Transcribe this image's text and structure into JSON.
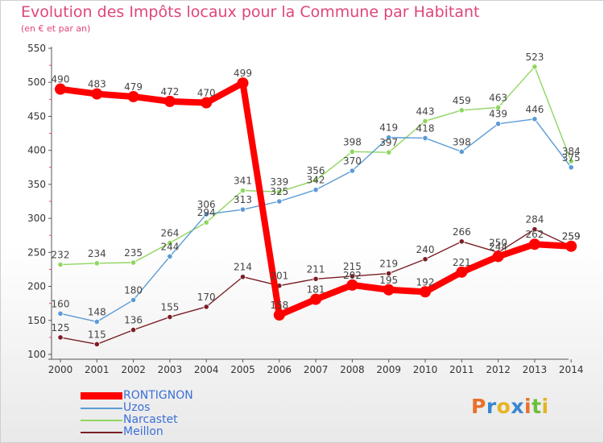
{
  "title": "Evolution des Impôts locaux pour la Commune par Habitant",
  "subtitle": "(en € et par an)",
  "logo": {
    "letters": [
      "P",
      "r",
      "o",
      "x",
      "i",
      "t",
      "i"
    ],
    "colors": [
      "#e8712d",
      "#3a86cf",
      "#e6b422",
      "#3a86cf",
      "#e8712d",
      "#6cbf3a",
      "#e6b422"
    ]
  },
  "chart_data": {
    "type": "line",
    "x": [
      "2000",
      "2001",
      "2002",
      "2003",
      "2004",
      "2005",
      "2006",
      "2007",
      "2008",
      "2009",
      "2010",
      "2011",
      "2012",
      "2013",
      "2014"
    ],
    "yticks": [
      "100",
      "150",
      "200",
      "250",
      "300",
      "350",
      "400",
      "450",
      "500",
      "550"
    ],
    "ylim": [
      100,
      550
    ],
    "grid": false,
    "legend": "bottom-left",
    "series": [
      {
        "name": "RONTIGNON",
        "color": "#ff0000",
        "values": [
          490,
          483,
          479,
          472,
          470,
          499,
          158,
          181,
          202,
          195,
          192,
          221,
          244,
          262,
          259
        ],
        "labels": [
          "490",
          "483",
          "479",
          "472",
          "470",
          "499",
          "158",
          "181",
          "202",
          "195",
          "192",
          "221",
          "244",
          "262",
          "259"
        ]
      },
      {
        "name": "Uzos",
        "color": "#5b9bd5",
        "values": [
          160,
          148,
          180,
          244,
          306,
          313,
          325,
          342,
          370,
          419,
          418,
          398,
          439,
          446,
          375
        ],
        "labels": [
          "160",
          "148",
          "180",
          "244",
          "306",
          "313",
          "325",
          "342",
          "370",
          "419",
          "418",
          "398",
          "439",
          "446",
          "375"
        ]
      },
      {
        "name": "Narcastet",
        "color": "#8fd660",
        "values": [
          232,
          234,
          235,
          264,
          294,
          341,
          339,
          356,
          398,
          397,
          443,
          459,
          463,
          523,
          384
        ],
        "labels": [
          "232",
          "234",
          "235",
          "264",
          "294",
          "341",
          "339",
          "356",
          "398",
          "397",
          "443",
          "459",
          "463",
          "523",
          "384"
        ]
      },
      {
        "name": "Meillon",
        "color": "#7b1f26",
        "values": [
          125,
          115,
          136,
          155,
          170,
          214,
          201,
          211,
          215,
          219,
          240,
          266,
          250,
          284,
          259
        ],
        "labels": [
          "125",
          "115",
          "136",
          "155",
          "170",
          "214",
          "201",
          "211",
          "215",
          "219",
          "240",
          "266",
          "250",
          "284",
          "259"
        ]
      }
    ]
  }
}
